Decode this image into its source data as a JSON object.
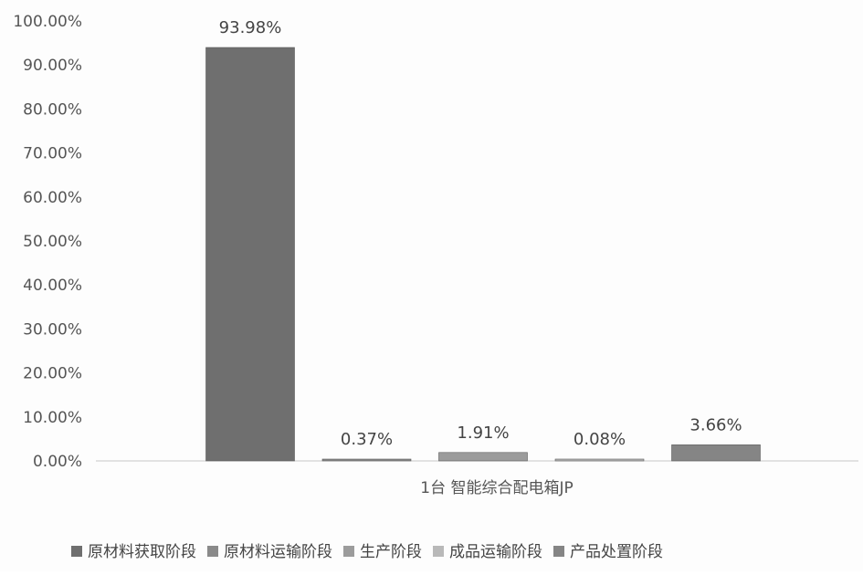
{
  "chart_data": {
    "type": "bar",
    "title": "",
    "xlabel": "",
    "ylabel": "",
    "categories": [
      "1台 智能综合配电箱JP"
    ],
    "series": [
      {
        "name": "原材料获取阶段",
        "values": [
          93.98
        ],
        "label": "93.98%",
        "color": "#6f6f6f"
      },
      {
        "name": "原材料运输阶段",
        "values": [
          0.37
        ],
        "label": "0.37%",
        "color": "#8a8a8a"
      },
      {
        "name": "生产阶段",
        "values": [
          1.91
        ],
        "label": "1.91%",
        "color": "#9c9c9c"
      },
      {
        "name": "成品运输阶段",
        "values": [
          0.08
        ],
        "label": "0.08%",
        "color": "#b9b9b9"
      },
      {
        "name": "产品处置阶段",
        "values": [
          3.66
        ],
        "label": "3.66%",
        "color": "#858585"
      }
    ],
    "ylim": [
      0,
      100
    ],
    "yticks": [
      0,
      10,
      20,
      30,
      40,
      50,
      60,
      70,
      80,
      90,
      100
    ],
    "ytick_labels": [
      "0.00%",
      "10.00%",
      "20.00%",
      "30.00%",
      "40.00%",
      "50.00%",
      "60.00%",
      "70.00%",
      "80.00%",
      "90.00%",
      "100.00%"
    ],
    "grid": false,
    "legend": {
      "position": "bottom"
    }
  }
}
